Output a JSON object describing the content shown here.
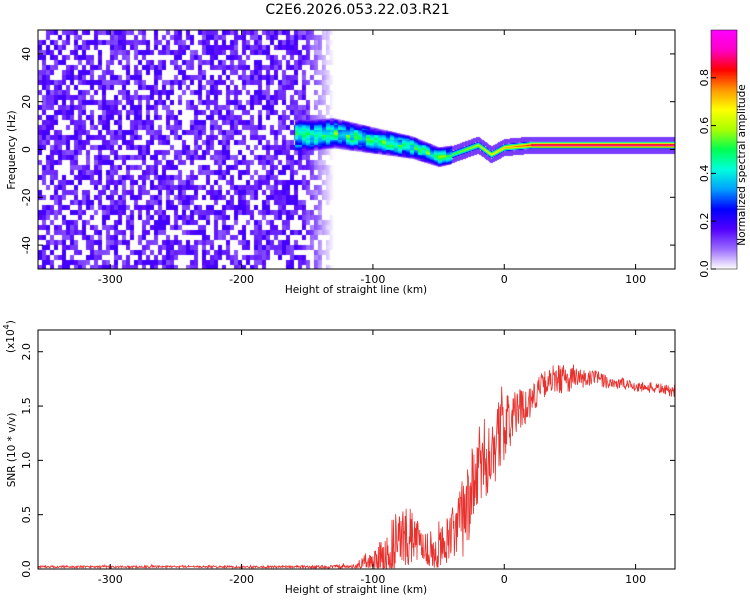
{
  "title": "C2E6.2026.053.22.03.R21",
  "chart_data": [
    {
      "type": "heatmap",
      "xlabel": "Height of straight line (km)",
      "ylabel": "Frequency (Hz)",
      "xlim": [
        -355,
        130
      ],
      "ylim": [
        -50,
        50
      ],
      "xticks": [
        -300,
        -200,
        -100,
        0,
        100
      ],
      "yticks": [
        -40,
        -20,
        0,
        20,
        40
      ],
      "colorbar": {
        "label": "Normalized spectral amplitude",
        "range": [
          0,
          1
        ],
        "ticks": [
          "0.0",
          "0.2",
          "0.4",
          "0.6",
          "0.8"
        ],
        "colors": [
          "#ffffff",
          "#9a6bff",
          "#5000ff",
          "#0000ff",
          "#00a0ff",
          "#00ffdc",
          "#00ff50",
          "#aaff00",
          "#ffff00",
          "#ff9600",
          "#ff0000",
          "#ff00c8",
          "#ff00ff"
        ]
      },
      "features": {
        "noise_region_x": [
          -355,
          -130
        ],
        "noise_amplitude": 0.15,
        "signal_ridge": [
          [
            -150,
            6
          ],
          [
            -130,
            7
          ],
          [
            -110,
            5
          ],
          [
            -90,
            3
          ],
          [
            -70,
            1
          ],
          [
            -50,
            -3
          ],
          [
            -40,
            -2
          ],
          [
            -30,
            0
          ],
          [
            -20,
            2
          ],
          [
            -10,
            -2
          ],
          [
            0,
            1
          ],
          [
            20,
            2
          ],
          [
            60,
            2
          ],
          [
            90,
            2
          ],
          [
            130,
            2
          ]
        ],
        "ridge_peak_amplitude": 0.95
      }
    },
    {
      "type": "line",
      "xlabel": "Height of straight line (km)",
      "ylabel": "SNR (10 * v/v)",
      "yscale_label": "(x10",
      "yscale_exp": "4",
      "xlim": [
        -355,
        130
      ],
      "ylim": [
        0,
        2.2
      ],
      "xticks": [
        -300,
        -200,
        -100,
        0,
        100
      ],
      "yticks": [
        "0.0",
        "0.5",
        "1.0",
        "1.5",
        "2.0"
      ],
      "line_color": "#e8302c",
      "envelope": {
        "x": [
          -355,
          -160,
          -115,
          -100,
          -90,
          -80,
          -70,
          -60,
          -50,
          -40,
          -30,
          -20,
          -10,
          0,
          10,
          20,
          30,
          40,
          50,
          60,
          70,
          80,
          90,
          100,
          110,
          120,
          130
        ],
        "base": [
          0.02,
          0.02,
          0.02,
          0.08,
          0.15,
          0.28,
          0.3,
          0.2,
          0.15,
          0.3,
          0.5,
          0.9,
          1.1,
          1.3,
          1.45,
          1.55,
          1.7,
          1.75,
          1.75,
          1.75,
          1.75,
          1.72,
          1.7,
          1.68,
          1.67,
          1.66,
          1.62
        ],
        "noise": [
          0.01,
          0.01,
          0.02,
          0.1,
          0.22,
          0.3,
          0.25,
          0.15,
          0.2,
          0.25,
          0.4,
          0.4,
          0.4,
          0.3,
          0.2,
          0.15,
          0.12,
          0.15,
          0.12,
          0.1,
          0.08,
          0.06,
          0.06,
          0.05,
          0.05,
          0.05,
          0.05
        ]
      }
    }
  ]
}
